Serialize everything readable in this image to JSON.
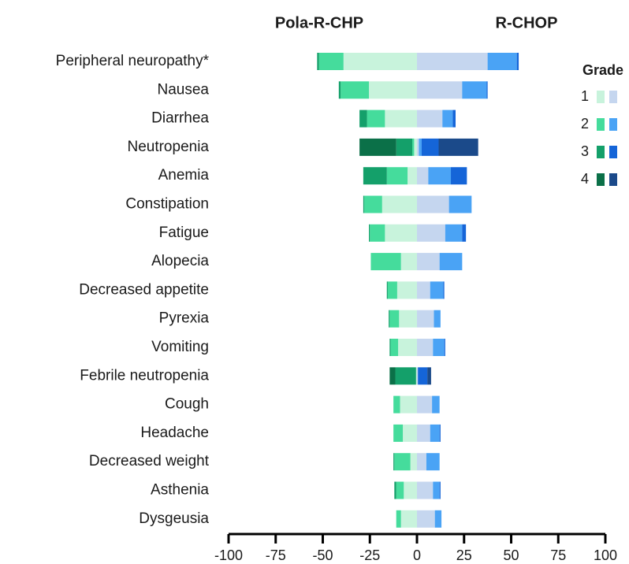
{
  "chart_data": {
    "type": "diverging-stacked-bar",
    "categories": [
      "Peripheral neuropathy*",
      "Nausea",
      "Diarrhea",
      "Neutropenia",
      "Anemia",
      "Constipation",
      "Fatigue",
      "Alopecia",
      "Decreased appetite",
      "Pyrexia",
      "Vomiting",
      "Febrile neutropenia",
      "Cough",
      "Headache",
      "Decreased weight",
      "Asthenia",
      "Dysgeusia"
    ],
    "legend_title": "Grade",
    "grades": [
      "1",
      "2",
      "3",
      "4"
    ],
    "series": [
      {
        "name": "Pola-R-CHP",
        "colors": [
          "#c8f3dc",
          "#45dc9c",
          "#14a06a",
          "#0b7048"
        ],
        "values": [
          [
            -39,
            -25.5,
            -17,
            -1.5,
            -5,
            -18.5,
            -17,
            -8.5,
            -10.5,
            -9.5,
            -10,
            -0.5,
            -9,
            -7.5,
            -3.5,
            -7,
            -8.5
          ],
          [
            -13,
            -15,
            -9.5,
            -1,
            -11,
            -9.5,
            -8,
            -16,
            -5,
            -5,
            -4,
            0,
            -3.5,
            -5,
            -8.5,
            -4,
            -2.5
          ],
          [
            -1,
            -1,
            -4,
            -8.5,
            -12.5,
            -0.5,
            -0.5,
            0,
            -0.5,
            -0.5,
            -0.5,
            -11,
            0,
            0,
            -0.5,
            -1,
            0
          ],
          [
            0,
            0,
            0,
            -19.5,
            0,
            0,
            0,
            0,
            0,
            0,
            0,
            -3,
            0,
            0,
            0,
            0,
            0
          ]
        ]
      },
      {
        "name": "R-CHOP",
        "colors": [
          "#c5d6ef",
          "#4aa3f5",
          "#1565d8",
          "#1b4a8a"
        ],
        "values": [
          [
            37.5,
            24,
            13.5,
            1,
            6,
            17,
            15,
            12,
            7,
            9,
            8.5,
            0.5,
            8,
            7,
            5,
            8.5,
            9.5
          ],
          [
            15.5,
            13,
            5.5,
            1.5,
            12,
            12,
            9,
            12,
            7,
            3.5,
            6,
            0,
            4,
            5,
            7,
            3.5,
            3.5
          ],
          [
            1,
            0.5,
            1.5,
            9,
            8.5,
            0,
            2,
            0,
            0.5,
            0,
            0.5,
            5,
            0,
            0.5,
            0,
            0.5,
            0
          ],
          [
            0,
            0,
            0,
            21,
            0,
            0,
            0,
            0,
            0,
            0,
            0,
            2,
            0,
            0,
            0,
            0,
            0
          ]
        ]
      }
    ],
    "xlim": [
      -100,
      100
    ],
    "xticks": [
      -100,
      -75,
      -50,
      -25,
      0,
      25,
      50,
      75,
      100
    ]
  }
}
